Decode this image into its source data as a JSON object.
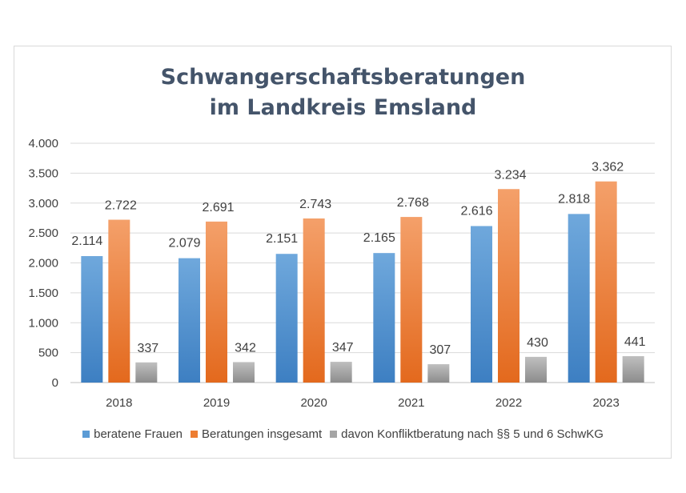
{
  "chart_data": {
    "type": "bar",
    "title_lines": [
      "Schwangerschaftsberatungen",
      "im Landkreis Emsland"
    ],
    "categories": [
      "2018",
      "2019",
      "2020",
      "2021",
      "2022",
      "2023"
    ],
    "series": [
      {
        "name": "beratene Frauen",
        "color": "#5b9bd5",
        "values": [
          2114,
          2079,
          2151,
          2165,
          2616,
          2818
        ],
        "labels": [
          "2.114",
          "2.079",
          "2.151",
          "2.165",
          "2.616",
          "2.818"
        ]
      },
      {
        "name": "Beratungen insgesamt",
        "color": "#ed7d31",
        "values": [
          2722,
          2691,
          2743,
          2768,
          3234,
          3362
        ],
        "labels": [
          "2.722",
          "2.691",
          "2.743",
          "2.768",
          "3.234",
          "3.362"
        ]
      },
      {
        "name": "davon Konfliktberatung nach §§ 5 und 6 SchwKG",
        "color": "#a5a5a5",
        "values": [
          337,
          342,
          347,
          307,
          430,
          441
        ],
        "labels": [
          "337",
          "342",
          "347",
          "307",
          "430",
          "441"
        ]
      }
    ],
    "ylim": [
      0,
      4000
    ],
    "yticks": [
      0,
      500,
      1000,
      1500,
      2000,
      2500,
      3000,
      3500,
      4000
    ],
    "ytick_labels": [
      "0",
      "500",
      "1.000",
      "1.500",
      "2.000",
      "2.500",
      "3.000",
      "3.500",
      "4.000"
    ],
    "grid": true,
    "legend_position": "bottom"
  }
}
